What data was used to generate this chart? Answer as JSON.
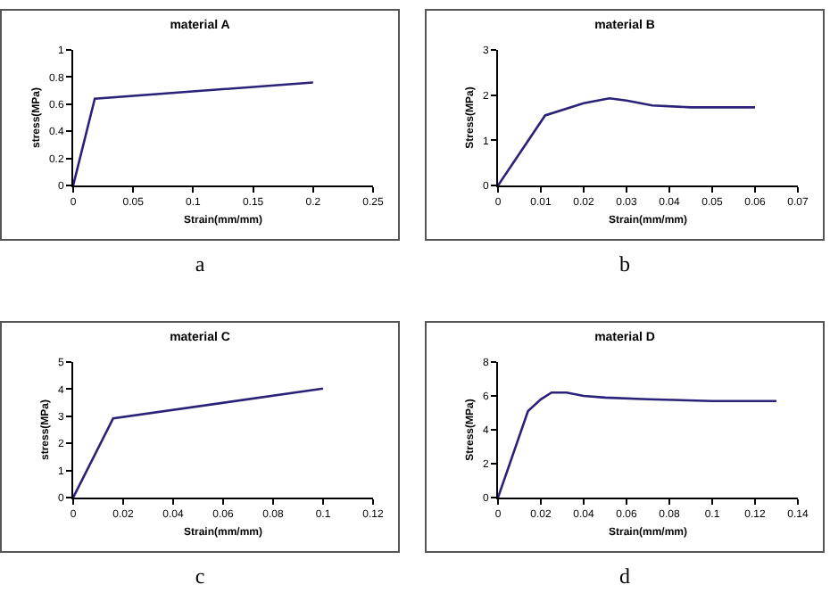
{
  "chart_data": [
    {
      "type": "line",
      "title": "material A",
      "xlabel": "Strain(mm/mm)",
      "ylabel": "stress(MPa)",
      "annotations": [
        "a"
      ],
      "x": [
        0,
        0.018,
        0.2
      ],
      "series": [
        {
          "color": "#2a2278",
          "values": [
            0,
            0.64,
            0.76
          ]
        }
      ],
      "xlim": [
        0,
        0.25
      ],
      "xticks": [
        0,
        0.05,
        0.1,
        0.15,
        0.2,
        0.25
      ],
      "ylim": [
        0,
        1
      ],
      "yticks": [
        0,
        0.2,
        0.4,
        0.6,
        0.8,
        1
      ],
      "grid": false,
      "marker": "none",
      "line_style": "solid"
    },
    {
      "type": "line",
      "title": "material B",
      "xlabel": "Strain(mm/mm)",
      "ylabel": "Stress(MPa)",
      "annotations": [
        "b"
      ],
      "x": [
        0,
        0.011,
        0.02,
        0.026,
        0.03,
        0.036,
        0.045,
        0.06
      ],
      "series": [
        {
          "color": "#2a2278",
          "values": [
            0,
            1.55,
            1.82,
            1.93,
            1.88,
            1.77,
            1.73,
            1.73
          ]
        }
      ],
      "xlim": [
        0,
        0.07
      ],
      "xticks": [
        0,
        0.01,
        0.02,
        0.03,
        0.04,
        0.05,
        0.06,
        0.07
      ],
      "ylim": [
        0,
        3
      ],
      "yticks": [
        0,
        1,
        2,
        3
      ],
      "grid": false,
      "marker": "none",
      "line_style": "solid"
    },
    {
      "type": "line",
      "title": "material C",
      "xlabel": "Strain(mm/mm)",
      "ylabel": "stress(MPa)",
      "annotations": [
        "c"
      ],
      "x": [
        0,
        0.016,
        0.1
      ],
      "series": [
        {
          "color": "#2a2278",
          "values": [
            0,
            2.92,
            4.02
          ]
        }
      ],
      "xlim": [
        0,
        0.12
      ],
      "xticks": [
        0,
        0.02,
        0.04,
        0.06,
        0.08,
        0.1,
        0.12
      ],
      "ylim": [
        0,
        5
      ],
      "yticks": [
        0,
        1,
        2,
        3,
        4,
        5
      ],
      "grid": false,
      "marker": "none",
      "line_style": "solid"
    },
    {
      "type": "line",
      "title": "material D",
      "xlabel": "Strain(mm/mm)",
      "ylabel": "Stress(MPa)",
      "annotations": [
        "d"
      ],
      "x": [
        0,
        0.014,
        0.02,
        0.025,
        0.032,
        0.04,
        0.05,
        0.07,
        0.1,
        0.13
      ],
      "series": [
        {
          "color": "#2a2278",
          "values": [
            0,
            5.1,
            5.8,
            6.2,
            6.2,
            6,
            5.9,
            5.8,
            5.7,
            5.7
          ]
        }
      ],
      "xlim": [
        0,
        0.14
      ],
      "xticks": [
        0,
        0.02,
        0.04,
        0.06,
        0.08,
        0.1,
        0.12,
        0.14
      ],
      "ylim": [
        0,
        8
      ],
      "yticks": [
        0,
        2,
        4,
        6,
        8
      ],
      "grid": false,
      "marker": "none",
      "line_style": "solid"
    }
  ]
}
